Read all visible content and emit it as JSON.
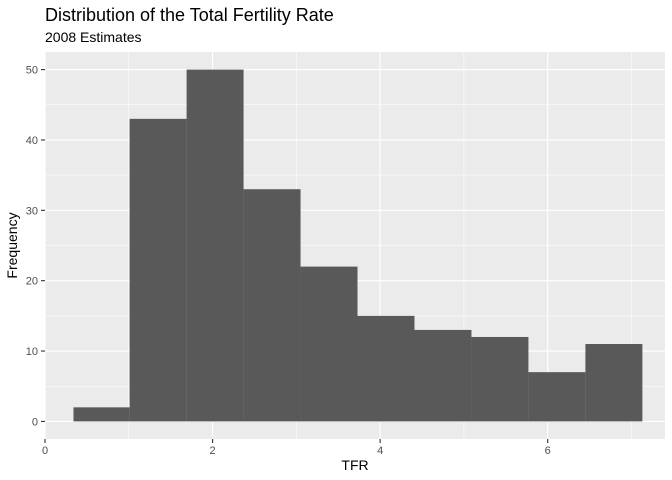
{
  "chart_data": {
    "type": "bar",
    "title": "Distribution of the Total Fertility Rate",
    "subtitle": "2008 Estimates",
    "xlabel": "TFR",
    "ylabel": "Frequency",
    "bins": [
      {
        "x_start": 0.34,
        "x_end": 1.01,
        "value": 2
      },
      {
        "x_start": 1.01,
        "x_end": 1.69,
        "value": 43
      },
      {
        "x_start": 1.69,
        "x_end": 2.37,
        "value": 50
      },
      {
        "x_start": 2.37,
        "x_end": 3.05,
        "value": 33
      },
      {
        "x_start": 3.05,
        "x_end": 3.73,
        "value": 22
      },
      {
        "x_start": 3.73,
        "x_end": 4.41,
        "value": 15
      },
      {
        "x_start": 4.41,
        "x_end": 5.09,
        "value": 13
      },
      {
        "x_start": 5.09,
        "x_end": 5.77,
        "value": 12
      },
      {
        "x_start": 5.77,
        "x_end": 6.45,
        "value": 7
      },
      {
        "x_start": 6.45,
        "x_end": 7.13,
        "value": 11
      }
    ],
    "xlim": [
      0,
      7.4
    ],
    "ylim": [
      -2.5,
      52.5
    ],
    "x_ticks": [
      0,
      2,
      4,
      6
    ],
    "y_ticks": [
      0,
      10,
      20,
      30,
      40,
      50
    ],
    "grid": true,
    "colors": {
      "panel_background": "#EBEBEB",
      "grid_major": "#FFFFFF",
      "bar_fill": "#595959",
      "tick_text": "#4D4D4D"
    }
  }
}
